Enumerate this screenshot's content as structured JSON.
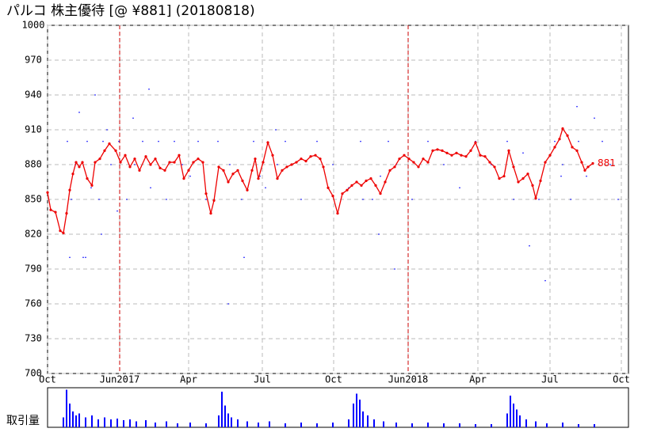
{
  "chart_data": [
    {
      "type": "line",
      "title": "パルコ 株主優待  [@ ¥881] (20180818)",
      "xlim": [
        0,
        733
      ],
      "ylim": [
        700,
        1000
      ],
      "xticks": [
        {
          "value": 0,
          "label": "Oct"
        },
        {
          "value": 91,
          "label": "Jun2017"
        },
        {
          "value": 178,
          "label": "Apr"
        },
        {
          "value": 271,
          "label": "Jul"
        },
        {
          "value": 361,
          "label": "Oct"
        },
        {
          "value": 455,
          "label": "Jun2018"
        },
        {
          "value": 543,
          "label": "Apr"
        },
        {
          "value": 634,
          "label": "Jul"
        },
        {
          "value": 724,
          "label": "Oct"
        }
      ],
      "yticks": [
        700,
        730,
        760,
        790,
        820,
        850,
        880,
        910,
        940,
        970,
        1000
      ],
      "record_lines": [
        91,
        455
      ],
      "grid": true,
      "series": [
        {
          "color": "#0000ff",
          "mode": "markers",
          "x": [
            25,
            30,
            35,
            40,
            45,
            50,
            55,
            60,
            65,
            70,
            75,
            80,
            90,
            100,
            110,
            120,
            130,
            140,
            150,
            160,
            170,
            180,
            190,
            200,
            215,
            230,
            245,
            260,
            275,
            290,
            300,
            320,
            340,
            360,
            380,
            395,
            410,
            420,
            430,
            440,
            460,
            480,
            500,
            520,
            540,
            560,
            580,
            600,
            620,
            640,
            650,
            660,
            670,
            680,
            690,
            700,
            710,
            720,
            28,
            48,
            68,
            88,
            108,
            128,
            228,
            248,
            268,
            288,
            398,
            418,
            438,
            588,
            608,
            628,
            648,
            668
          ],
          "values": [
            900,
            850,
            880,
            925,
            800,
            900,
            860,
            940,
            850,
            900,
            910,
            880,
            900,
            850,
            880,
            900,
            860,
            900,
            850,
            900,
            880,
            870,
            900,
            850,
            900,
            880,
            850,
            900,
            860,
            880,
            900,
            850,
            900,
            880,
            860,
            900,
            850,
            870,
            900,
            880,
            850,
            900,
            880,
            860,
            900,
            880,
            900,
            890,
            850,
            900,
            880,
            850,
            900,
            870,
            920,
            900,
            880,
            850,
            800,
            800,
            820,
            840,
            920,
            945,
            760,
            800,
            870,
            910,
            850,
            820,
            790,
            850,
            810,
            780,
            870,
            930
          ]
        },
        {
          "color": "#ee0000",
          "mode": "lines+markers",
          "x": [
            0,
            4,
            10,
            16,
            20,
            24,
            28,
            32,
            36,
            40,
            44,
            50,
            56,
            60,
            66,
            72,
            78,
            86,
            92,
            98,
            104,
            110,
            116,
            124,
            130,
            136,
            142,
            148,
            154,
            160,
            166,
            172,
            178,
            184,
            190,
            196,
            200,
            206,
            210,
            216,
            222,
            228,
            234,
            240,
            246,
            252,
            258,
            262,
            266,
            272,
            278,
            284,
            290,
            296,
            302,
            308,
            314,
            320,
            326,
            332,
            338,
            344,
            348,
            354,
            360,
            366,
            372,
            378,
            384,
            390,
            396,
            402,
            408,
            414,
            420,
            426,
            432,
            438,
            444,
            450,
            456,
            462,
            468,
            474,
            480,
            486,
            492,
            498,
            504,
            510,
            516,
            522,
            528,
            534,
            540,
            546,
            552,
            558,
            564,
            570,
            576,
            582,
            588,
            594,
            600,
            606,
            612,
            616,
            622,
            628,
            634,
            640,
            646,
            650,
            656,
            662,
            668,
            674,
            678,
            682,
            688
          ],
          "values": [
            856,
            841,
            839,
            823,
            821,
            838,
            858,
            872,
            882,
            878,
            882,
            868,
            862,
            882,
            885,
            892,
            898,
            892,
            882,
            888,
            878,
            885,
            875,
            887,
            880,
            885,
            877,
            875,
            882,
            882,
            888,
            868,
            875,
            882,
            885,
            882,
            855,
            838,
            849,
            878,
            875,
            865,
            872,
            875,
            866,
            858,
            875,
            885,
            868,
            882,
            899,
            888,
            868,
            875,
            878,
            880,
            882,
            885,
            883,
            887,
            888,
            885,
            878,
            860,
            853,
            838,
            855,
            858,
            862,
            865,
            862,
            866,
            868,
            862,
            855,
            865,
            875,
            878,
            885,
            888,
            885,
            882,
            878,
            885,
            882,
            892,
            893,
            892,
            890,
            888,
            890,
            888,
            887,
            892,
            899,
            888,
            887,
            882,
            878,
            868,
            870,
            892,
            878,
            865,
            868,
            872,
            862,
            851,
            866,
            882,
            888,
            895,
            902,
            911,
            905,
            895,
            892,
            882,
            875,
            878,
            881
          ]
        }
      ]
    },
    {
      "type": "bar",
      "title": "取引量",
      "xlim": [
        0,
        733
      ],
      "ylim": [
        0,
        100
      ],
      "color": "#0000ff",
      "x": [
        20,
        24,
        28,
        32,
        36,
        40,
        48,
        56,
        64,
        72,
        80,
        88,
        96,
        104,
        112,
        124,
        136,
        150,
        164,
        180,
        200,
        216,
        220,
        224,
        228,
        232,
        240,
        252,
        266,
        280,
        300,
        320,
        340,
        360,
        380,
        386,
        390,
        394,
        398,
        404,
        412,
        424,
        440,
        460,
        480,
        500,
        520,
        540,
        560,
        580,
        584,
        588,
        592,
        596,
        604,
        616,
        630,
        650,
        670,
        690
      ],
      "values": [
        25,
        95,
        60,
        40,
        30,
        35,
        25,
        30,
        20,
        25,
        20,
        22,
        18,
        20,
        15,
        18,
        12,
        15,
        10,
        12,
        10,
        30,
        90,
        55,
        35,
        25,
        20,
        15,
        12,
        15,
        10,
        12,
        10,
        12,
        20,
        60,
        85,
        70,
        40,
        30,
        20,
        15,
        12,
        10,
        12,
        10,
        10,
        8,
        8,
        35,
        80,
        60,
        45,
        30,
        20,
        15,
        10,
        12,
        8,
        8
      ]
    }
  ]
}
